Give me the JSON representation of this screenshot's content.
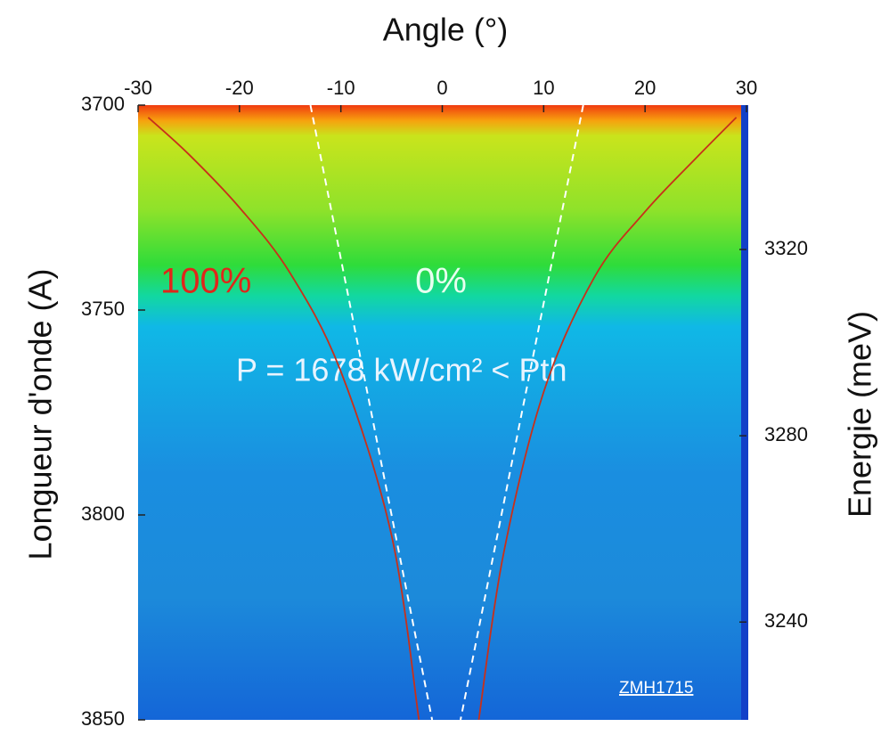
{
  "chart_data": {
    "type": "heatmap-curves",
    "title": "Angle (°)",
    "y_label": "Longueur d'onde (A)",
    "y2_label": "Energie (meV)",
    "annotations": [
      {
        "text": "100%",
        "color": "#e0261a"
      },
      {
        "text": "0%",
        "color": "#e8fff0"
      },
      {
        "text": "P = 1678 kW/cm² < Pth",
        "color": "#e8f4ff"
      },
      {
        "text": "ZMH1715",
        "color": "#ffffff"
      }
    ],
    "xlim": [
      -30,
      30
    ],
    "xticks": [
      -30,
      -20,
      -10,
      0,
      10,
      20,
      30
    ],
    "ylim": [
      3850,
      3700
    ],
    "yticks": [
      3700,
      3750,
      3800,
      3850
    ],
    "y2lim": [
      3219,
      3351
    ],
    "y2ticks": [
      3240,
      3280,
      3320
    ],
    "series": [
      {
        "color": "#c8301a",
        "dash": false,
        "x": [
          -29,
          -25,
          -20,
          -15,
          -10,
          -5,
          -2.3
        ],
        "values": [
          3703,
          3712,
          3725,
          3741,
          3765,
          3805,
          3850
        ]
      },
      {
        "color": "#c8301a",
        "dash": false,
        "x": [
          3.6,
          6,
          10,
          15,
          20,
          25,
          29
        ],
        "values": [
          3850,
          3810,
          3770,
          3742,
          3726,
          3713,
          3703
        ]
      },
      {
        "color": "#ffffff",
        "dash": true,
        "x": [
          -13,
          -1
        ],
        "values": [
          3700,
          3850
        ]
      },
      {
        "color": "#ffffff",
        "dash": true,
        "x": [
          13.9,
          1.8
        ],
        "values": [
          3700,
          3850
        ]
      }
    ]
  }
}
